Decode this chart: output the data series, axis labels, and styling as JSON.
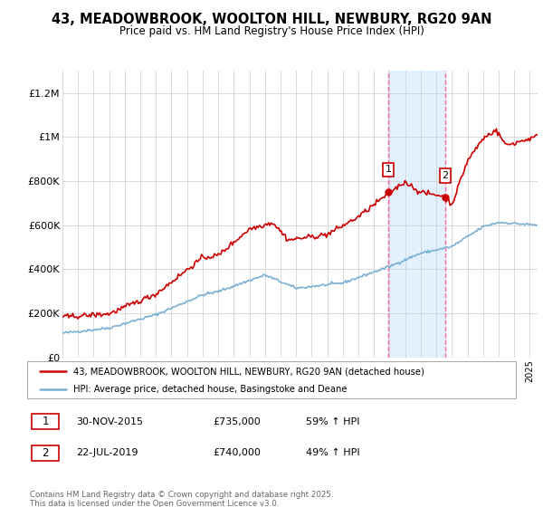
{
  "title_line1": "43, MEADOWBROOK, WOOLTON HILL, NEWBURY, RG20 9AN",
  "title_line2": "Price paid vs. HM Land Registry's House Price Index (HPI)",
  "legend_label1": "43, MEADOWBROOK, WOOLTON HILL, NEWBURY, RG20 9AN (detached house)",
  "legend_label2": "HPI: Average price, detached house, Basingstoke and Deane",
  "sale1_date": "30-NOV-2015",
  "sale1_price": 735000,
  "sale1_pct": "59% ↑ HPI",
  "sale2_date": "22-JUL-2019",
  "sale2_price": 740000,
  "sale2_pct": "49% ↑ HPI",
  "footer": "Contains HM Land Registry data © Crown copyright and database right 2025.\nThis data is licensed under the Open Government Licence v3.0.",
  "line1_color": "#cc0000",
  "line2_color": "#7ab0d4",
  "shade_color": "#ddeeff",
  "vline_color": "#ff66aa",
  "ylim_min": 0,
  "ylim_max": 1300000,
  "yticks": [
    0,
    200000,
    400000,
    600000,
    800000,
    1000000,
    1200000
  ],
  "ytick_labels": [
    "£0",
    "£200K",
    "£400K",
    "£600K",
    "£800K",
    "£1M",
    "£1.2M"
  ],
  "year_start": 1995,
  "year_end": 2025
}
